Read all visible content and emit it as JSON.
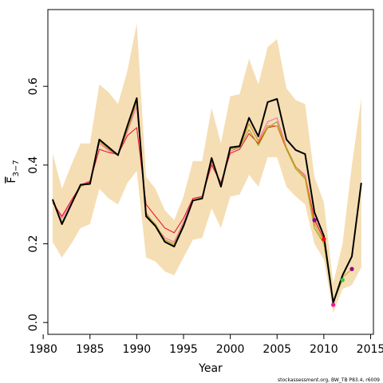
{
  "chart_data": {
    "type": "line",
    "xlabel": "Year",
    "ylabel": "F",
    "ylabel_sub": "3−7",
    "xlim": [
      1980.5,
      2015.3
    ],
    "ylim": [
      -0.03,
      0.795
    ],
    "x_ticks": [
      1980,
      1985,
      1990,
      1995,
      2000,
      2005,
      2010,
      2015
    ],
    "y_ticks": [
      0.0,
      0.2,
      0.4,
      0.6
    ],
    "x_tick_labels": [
      "1980",
      "1985",
      "1990",
      "1995",
      "2000",
      "2005",
      "2010",
      "2015"
    ],
    "y_tick_labels": [
      "0.0",
      "0.2",
      "0.4",
      "0.6"
    ],
    "footnote": "stockassessment.org, BW_TB P83.4, r6009",
    "colors": {
      "band": "#f5deb3",
      "main": "#000000",
      "retro_red": "#e8192c",
      "retro_pink": "#ff69b4",
      "retro_olive": "#9aa51f",
      "retro_gold": "#d4a017",
      "point_purple": "#8b008b",
      "point_red": "#ff0000",
      "point_magenta": "#ff1493",
      "point_green": "#32cd32"
    },
    "band": {
      "x": [
        1981,
        1982,
        1983,
        1984,
        1985,
        1986,
        1987,
        1988,
        1989,
        1990,
        1991,
        1992,
        1993,
        1994,
        1995,
        1996,
        1997,
        1998,
        1999,
        2000,
        2001,
        2002,
        2003,
        2004,
        2005,
        2006,
        2007,
        2008,
        2009,
        2010,
        2011,
        2012,
        2013,
        2014
      ],
      "upper": [
        0.43,
        0.34,
        0.4,
        0.455,
        0.455,
        0.605,
        0.585,
        0.555,
        0.64,
        0.76,
        0.37,
        0.34,
        0.285,
        0.26,
        0.32,
        0.41,
        0.41,
        0.545,
        0.455,
        0.575,
        0.58,
        0.67,
        0.605,
        0.7,
        0.72,
        0.595,
        0.565,
        0.555,
        0.37,
        0.305,
        0.1,
        0.2,
        0.4,
        0.57
      ],
      "lower": [
        0.205,
        0.165,
        0.2,
        0.24,
        0.25,
        0.34,
        0.315,
        0.3,
        0.355,
        0.385,
        0.165,
        0.155,
        0.13,
        0.12,
        0.165,
        0.21,
        0.215,
        0.29,
        0.24,
        0.32,
        0.325,
        0.375,
        0.345,
        0.42,
        0.42,
        0.345,
        0.32,
        0.3,
        0.2,
        0.16,
        0.025,
        0.085,
        0.095,
        0.14
      ]
    },
    "series": [
      {
        "color": "#000000",
        "x": [
          1981,
          1982,
          1983,
          1984,
          1985,
          1986,
          1987,
          1988,
          1989,
          1990,
          1991,
          1992,
          1993,
          1994,
          1995,
          1996,
          1997,
          1998,
          1999,
          2000,
          2001,
          2002,
          2003,
          2004,
          2005,
          2006,
          2007,
          2008,
          2009,
          2010,
          2011,
          2012,
          2013,
          2014
        ],
        "values": [
          0.313,
          0.25,
          0.3,
          0.35,
          0.352,
          0.465,
          0.445,
          0.425,
          0.5,
          0.57,
          0.27,
          0.245,
          0.205,
          0.193,
          0.245,
          0.31,
          0.315,
          0.418,
          0.345,
          0.445,
          0.448,
          0.52,
          0.473,
          0.56,
          0.568,
          0.465,
          0.438,
          0.428,
          0.28,
          0.22,
          0.05,
          0.12,
          0.168,
          0.355
        ]
      },
      {
        "color": "#ff69b4",
        "x": [
          1981,
          1982,
          1983,
          1984,
          1985,
          1986,
          1987,
          1988,
          1989,
          1990,
          1991,
          1992,
          1993,
          1994,
          1995,
          1996,
          1997,
          1998,
          1999,
          2000,
          2001,
          2002,
          2003,
          2004,
          2005,
          2006,
          2007,
          2008,
          2009,
          2010,
          2011
        ],
        "values": [
          0.31,
          0.265,
          0.305,
          0.35,
          0.36,
          0.455,
          0.437,
          0.425,
          0.485,
          0.55,
          0.28,
          0.245,
          0.215,
          0.205,
          0.255,
          0.315,
          0.32,
          0.405,
          0.355,
          0.435,
          0.445,
          0.505,
          0.462,
          0.51,
          0.52,
          0.445,
          0.395,
          0.375,
          0.265,
          0.21,
          0.045
        ]
      },
      {
        "color": "#e8192c",
        "x": [
          1981,
          1982,
          1983,
          1984,
          1985,
          1986,
          1987,
          1988,
          1989,
          1990,
          1991,
          1992,
          1993,
          1994,
          1995,
          1996,
          1997,
          1998,
          1999,
          2000,
          2001,
          2002,
          2003,
          2004,
          2005,
          2006,
          2007,
          2008,
          2009,
          2010
        ],
        "values": [
          0.305,
          0.27,
          0.31,
          0.348,
          0.358,
          0.44,
          0.432,
          0.427,
          0.475,
          0.495,
          0.3,
          0.27,
          0.24,
          0.228,
          0.265,
          0.315,
          0.32,
          0.4,
          0.355,
          0.43,
          0.44,
          0.48,
          0.455,
          0.495,
          0.5,
          0.44,
          0.395,
          0.37,
          0.26,
          0.212
        ]
      },
      {
        "color": "#9aa51f",
        "x": [
          1981,
          1982,
          1983,
          1984,
          1985,
          1986,
          1987,
          1988,
          1989,
          1990,
          1991,
          1992,
          1993,
          1994,
          1995,
          1996,
          1997,
          1998,
          1999,
          2000,
          2001,
          2002,
          2003,
          2004,
          2005,
          2006,
          2007,
          2008,
          2009,
          2010,
          2011,
          2012
        ],
        "values": [
          0.31,
          0.255,
          0.3,
          0.345,
          0.356,
          0.46,
          0.44,
          0.425,
          0.49,
          0.56,
          0.275,
          0.25,
          0.21,
          0.2,
          0.25,
          0.31,
          0.318,
          0.41,
          0.35,
          0.44,
          0.445,
          0.49,
          0.45,
          0.495,
          0.51,
          0.44,
          0.39,
          0.365,
          0.24,
          0.2,
          0.05,
          0.11
        ]
      },
      {
        "color": "#d4a017",
        "x": [
          1981,
          1982,
          1983,
          1984,
          1985,
          1986,
          1987,
          1988,
          1989,
          1990,
          1991,
          1992,
          1993,
          1994,
          1995,
          1996,
          1997,
          1998,
          1999,
          2000,
          2001,
          2002,
          2003,
          2004,
          2005,
          2006,
          2007,
          2008,
          2009,
          2010,
          2011,
          2012,
          2013
        ],
        "values": [
          0.312,
          0.252,
          0.3,
          0.348,
          0.354,
          0.462,
          0.442,
          0.425,
          0.495,
          0.565,
          0.272,
          0.247,
          0.207,
          0.196,
          0.247,
          0.31,
          0.316,
          0.415,
          0.347,
          0.443,
          0.447,
          0.505,
          0.46,
          0.5,
          0.5,
          0.445,
          0.395,
          0.37,
          0.25,
          0.205,
          0.052,
          0.115,
          0.136
        ]
      }
    ],
    "points": [
      {
        "x": 2009,
        "y": 0.26,
        "color": "#8b008b"
      },
      {
        "x": 2010,
        "y": 0.212,
        "color": "#ff0000"
      },
      {
        "x": 2011,
        "y": 0.045,
        "color": "#ff1493"
      },
      {
        "x": 2012,
        "y": 0.108,
        "color": "#32cd32"
      },
      {
        "x": 2013,
        "y": 0.136,
        "color": "#8b008b"
      }
    ]
  }
}
